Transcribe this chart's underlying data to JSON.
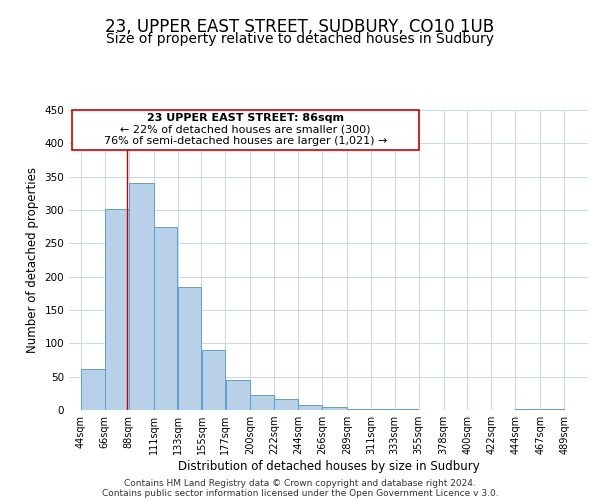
{
  "title": "23, UPPER EAST STREET, SUDBURY, CO10 1UB",
  "subtitle": "Size of property relative to detached houses in Sudbury",
  "xlabel": "Distribution of detached houses by size in Sudbury",
  "ylabel": "Number of detached properties",
  "bar_left_edges": [
    44,
    66,
    88,
    111,
    133,
    155,
    177,
    200,
    222,
    244,
    266,
    289,
    311,
    333,
    355,
    378,
    400,
    422,
    444,
    467
  ],
  "bar_heights": [
    62,
    301,
    340,
    275,
    184,
    90,
    45,
    23,
    16,
    8,
    5,
    2,
    1,
    1,
    0,
    0,
    0,
    0,
    1,
    1
  ],
  "bar_widths": [
    22,
    22,
    23,
    22,
    22,
    22,
    23,
    22,
    22,
    22,
    23,
    22,
    22,
    22,
    23,
    22,
    22,
    22,
    23,
    22
  ],
  "tick_labels": [
    "44sqm",
    "66sqm",
    "88sqm",
    "111sqm",
    "133sqm",
    "155sqm",
    "177sqm",
    "200sqm",
    "222sqm",
    "244sqm",
    "266sqm",
    "289sqm",
    "311sqm",
    "333sqm",
    "355sqm",
    "378sqm",
    "400sqm",
    "422sqm",
    "444sqm",
    "467sqm",
    "489sqm"
  ],
  "tick_positions": [
    44,
    66,
    88,
    111,
    133,
    155,
    177,
    200,
    222,
    244,
    266,
    289,
    311,
    333,
    355,
    378,
    400,
    422,
    444,
    467,
    489
  ],
  "bar_color": "#b8d0e8",
  "bar_edge_color": "#5a9fd4",
  "marker_x": 86,
  "marker_color": "#cc0000",
  "ylim": [
    0,
    450
  ],
  "xlim": [
    33,
    511
  ],
  "annotation_title": "23 UPPER EAST STREET: 86sqm",
  "annotation_line1": "← 22% of detached houses are smaller (300)",
  "annotation_line2": "76% of semi-detached houses are larger (1,021) →",
  "footer1": "Contains HM Land Registry data © Crown copyright and database right 2024.",
  "footer2": "Contains public sector information licensed under the Open Government Licence v 3.0.",
  "title_fontsize": 12,
  "subtitle_fontsize": 10,
  "axis_label_fontsize": 8.5,
  "tick_fontsize": 7,
  "annotation_fontsize": 8,
  "footer_fontsize": 6.5
}
